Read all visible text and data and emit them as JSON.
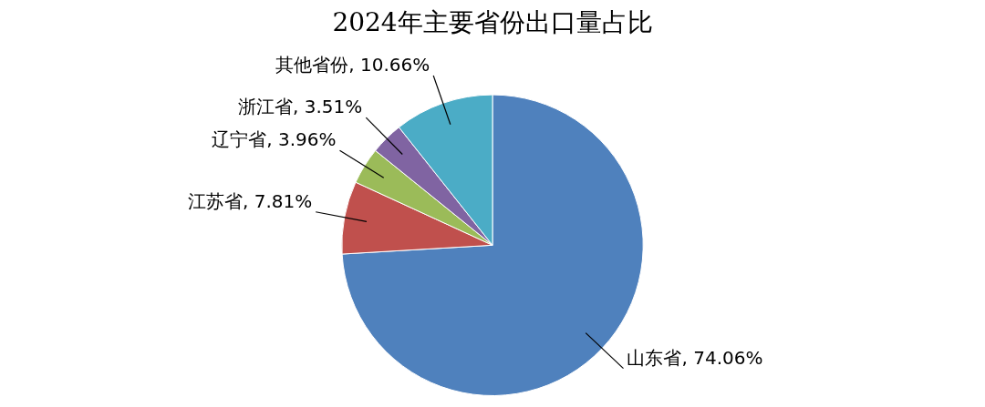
{
  "chart_data": {
    "type": "pie",
    "title": "2024年主要省份出口量占比",
    "categories": [
      "山东省",
      "江苏省",
      "辽宁省",
      "浙江省",
      "其他省份"
    ],
    "values": [
      74.06,
      7.81,
      3.96,
      3.51,
      10.66
    ],
    "colors": [
      "#4f81bd",
      "#c0504d",
      "#9bbb59",
      "#8064a2",
      "#4bacc6"
    ],
    "value_labels": [
      ", 74.06%",
      ", 7.81%",
      ", 3.96%",
      ", 3.51%",
      ", 10.66%"
    ]
  }
}
